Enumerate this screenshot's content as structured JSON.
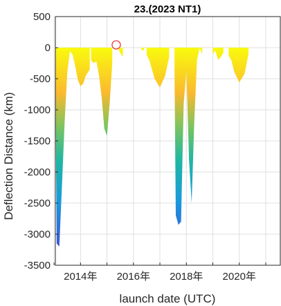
{
  "chart_data": {
    "type": "area",
    "title": "23.(2023 NT1)",
    "xlabel": "launch date (UTC)",
    "ylabel": "Deflection Distance (km)",
    "x_ticks": [
      "2014年",
      "2016年",
      "2018年",
      "2020年"
    ],
    "x_tick_years": [
      2014,
      2016,
      2018,
      2020
    ],
    "xlim": [
      2013.05,
      2021.55
    ],
    "y_ticks": [
      500,
      0,
      -500,
      -1000,
      -1500,
      -2000,
      -2500,
      -3000,
      -3500
    ],
    "ylim": [
      -3500,
      500
    ],
    "grid": true,
    "colormap": "parula",
    "series": [
      {
        "x": [
          2013.05,
          2013.1,
          2013.2,
          2013.3,
          2013.4,
          2013.5,
          2013.6,
          2013.7,
          2013.8,
          2013.9,
          2014.0,
          2014.1,
          2014.2,
          2014.35
        ],
        "y": [
          -500,
          -3150,
          -3200,
          -2200,
          -1200,
          -400,
          -60,
          -110,
          -300,
          -520,
          -620,
          -580,
          -450,
          -350
        ]
      },
      {
        "x": [
          2014.4,
          2014.5,
          2014.6,
          2014.7,
          2014.8,
          2014.9,
          2015.0,
          2015.1,
          2015.2
        ],
        "y": [
          -200,
          -250,
          -220,
          -450,
          -800,
          -1300,
          -1420,
          -900,
          -250
        ]
      },
      {
        "x": [
          2015.45,
          2015.6
        ],
        "y": [
          -50,
          -150
        ]
      },
      {
        "x": [
          2016.3,
          2016.4
        ],
        "y": [
          -40,
          -40
        ]
      },
      {
        "x": [
          2016.5,
          2016.6,
          2016.8,
          2017.0,
          2017.2,
          2017.35
        ],
        "y": [
          -120,
          -200,
          -500,
          -640,
          -450,
          -150
        ]
      },
      {
        "x": [
          2017.55,
          2017.6,
          2017.7,
          2017.8,
          2017.9,
          2018.0,
          2018.1,
          2018.2,
          2018.3,
          2018.4,
          2018.5,
          2018.6
        ],
        "y": [
          -350,
          -2700,
          -2850,
          -2800,
          -900,
          -380,
          -1800,
          -2500,
          -1200,
          -200,
          -10,
          -100
        ]
      },
      {
        "x": [
          2019.0,
          2019.1,
          2019.2,
          2019.3,
          2019.4
        ],
        "y": [
          -100,
          -50,
          -200,
          -150,
          -80
        ]
      },
      {
        "x": [
          2019.6,
          2019.7,
          2019.8,
          2020.0,
          2020.2,
          2020.35
        ],
        "y": [
          -130,
          -200,
          -380,
          -560,
          -420,
          -100
        ]
      }
    ],
    "marker": {
      "x": 2015.35,
      "y": 45,
      "color": "#e8262b"
    }
  }
}
